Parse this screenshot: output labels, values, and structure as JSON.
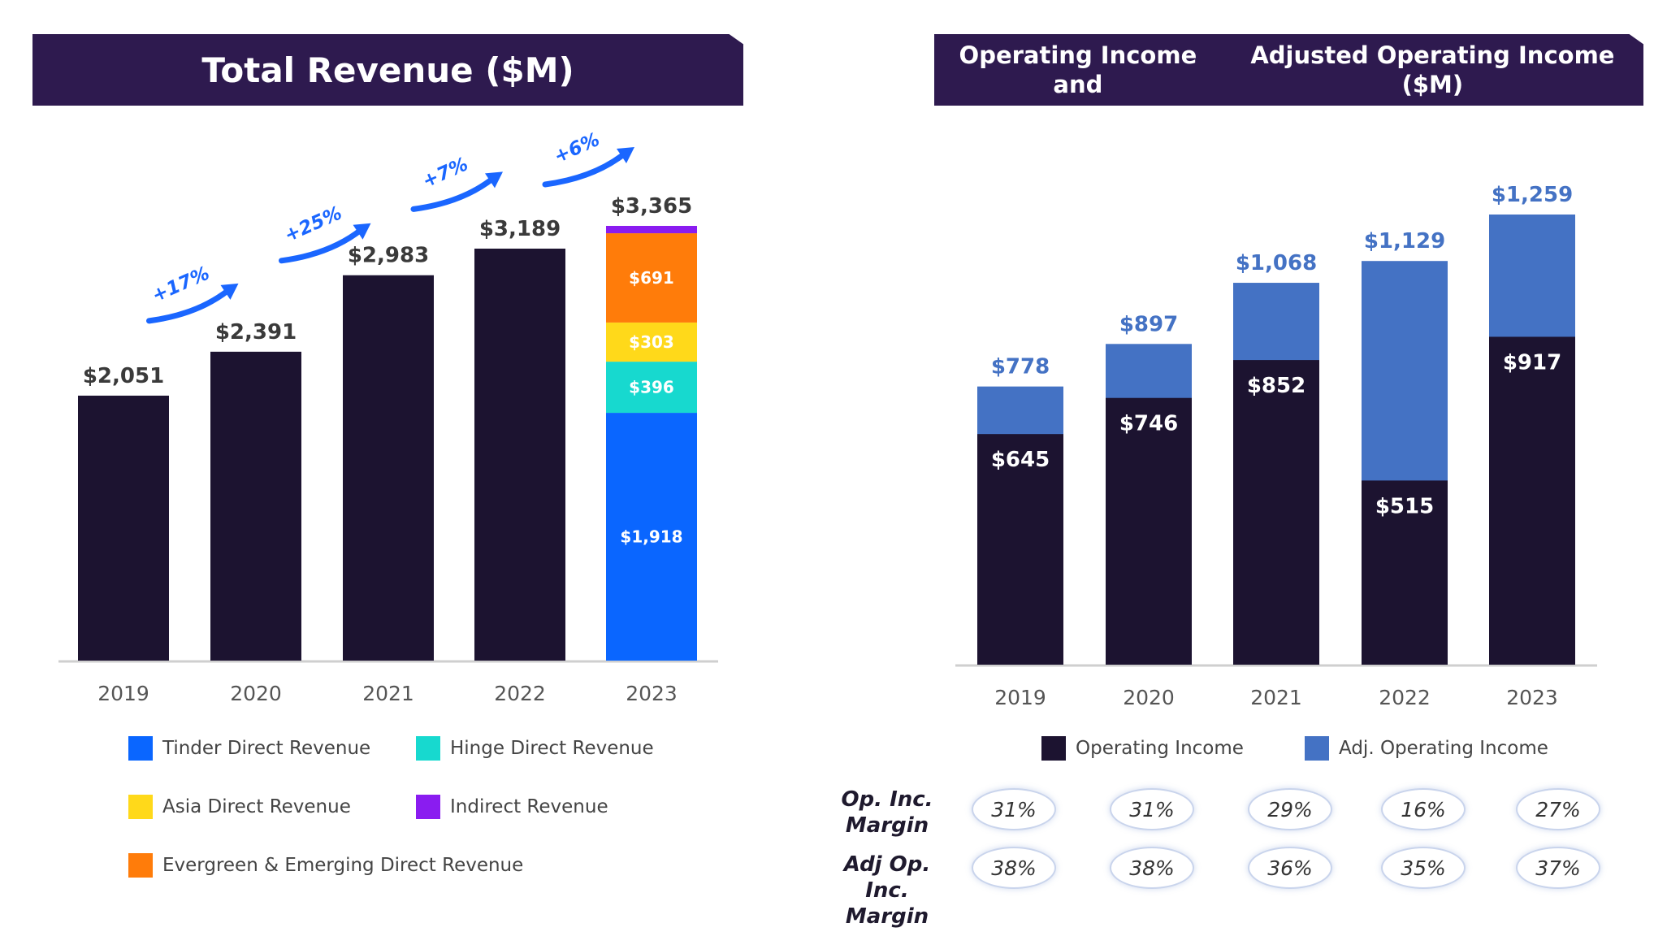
{
  "left_title": "Total Revenue ($M)",
  "right_title_line1": "Operating Income and",
  "right_title_line2": "Adjusted Operating Income ($M)",
  "colors": {
    "dark": "#1c1330",
    "tinder": "#0a66ff",
    "hinge": "#17d9cf",
    "asia": "#ffd91a",
    "evergreen": "#ff7c0a",
    "indirect": "#8a1cf0",
    "adj": "#4472c4",
    "growth": "#1a66ff"
  },
  "chart_data": [
    {
      "type": "bar",
      "title": "Total Revenue ($M)",
      "categories": [
        "2019",
        "2020",
        "2021",
        "2022",
        "2023"
      ],
      "values": [
        2051,
        2391,
        2983,
        3189,
        3365
      ],
      "value_labels": [
        "$2,051",
        "$2,391",
        "$2,983",
        "$3,189",
        "$3,365"
      ],
      "growth_labels": [
        "+17%",
        "+25%",
        "+7%",
        "+6%"
      ],
      "ylim": [
        0,
        3700
      ],
      "grid": false,
      "stack_2023": [
        {
          "name": "Tinder Direct Revenue",
          "value": 1918,
          "label": "$1,918",
          "color_key": "tinder"
        },
        {
          "name": "Hinge Direct Revenue",
          "value": 396,
          "label": "$396",
          "color_key": "hinge"
        },
        {
          "name": "Asia Direct Revenue",
          "value": 303,
          "label": "$303",
          "color_key": "asia"
        },
        {
          "name": "Evergreen & Emerging Direct Revenue",
          "value": 691,
          "label": "$691",
          "color_key": "evergreen"
        },
        {
          "name": "Indirect Revenue",
          "value": 57,
          "label": "",
          "color_key": "indirect"
        }
      ],
      "legend": [
        {
          "label": "Tinder Direct Revenue",
          "color_key": "tinder"
        },
        {
          "label": "Hinge Direct Revenue",
          "color_key": "hinge"
        },
        {
          "label": "Asia Direct Revenue",
          "color_key": "asia"
        },
        {
          "label": "Indirect Revenue",
          "color_key": "indirect"
        },
        {
          "label": "Evergreen & Emerging Direct Revenue",
          "color_key": "evergreen"
        }
      ]
    },
    {
      "type": "bar",
      "title": "Operating Income and Adjusted Operating Income ($M)",
      "categories": [
        "2019",
        "2020",
        "2021",
        "2022",
        "2023"
      ],
      "series": [
        {
          "name": "Operating Income",
          "values": [
            645,
            746,
            852,
            515,
            917
          ],
          "labels": [
            "$645",
            "$746",
            "$852",
            "$515",
            "$917"
          ]
        },
        {
          "name": "Adj. Operating Income",
          "values": [
            778,
            897,
            1068,
            1129,
            1259
          ],
          "labels": [
            "$778",
            "$897",
            "$1,068",
            "$1,129",
            "$1,259"
          ]
        }
      ],
      "ylim": [
        0,
        1400
      ],
      "grid": false,
      "legend": [
        "Operating Income",
        "Adj. Operating Income"
      ]
    }
  ],
  "margins": {
    "op_label_line1": "Op. Inc.",
    "op_label_line2": "Margin",
    "adj_label_line1": "Adj Op. Inc.",
    "adj_label_line2": "Margin",
    "op": [
      "31%",
      "31%",
      "29%",
      "16%",
      "27%"
    ],
    "adj": [
      "38%",
      "38%",
      "36%",
      "35%",
      "37%"
    ]
  }
}
